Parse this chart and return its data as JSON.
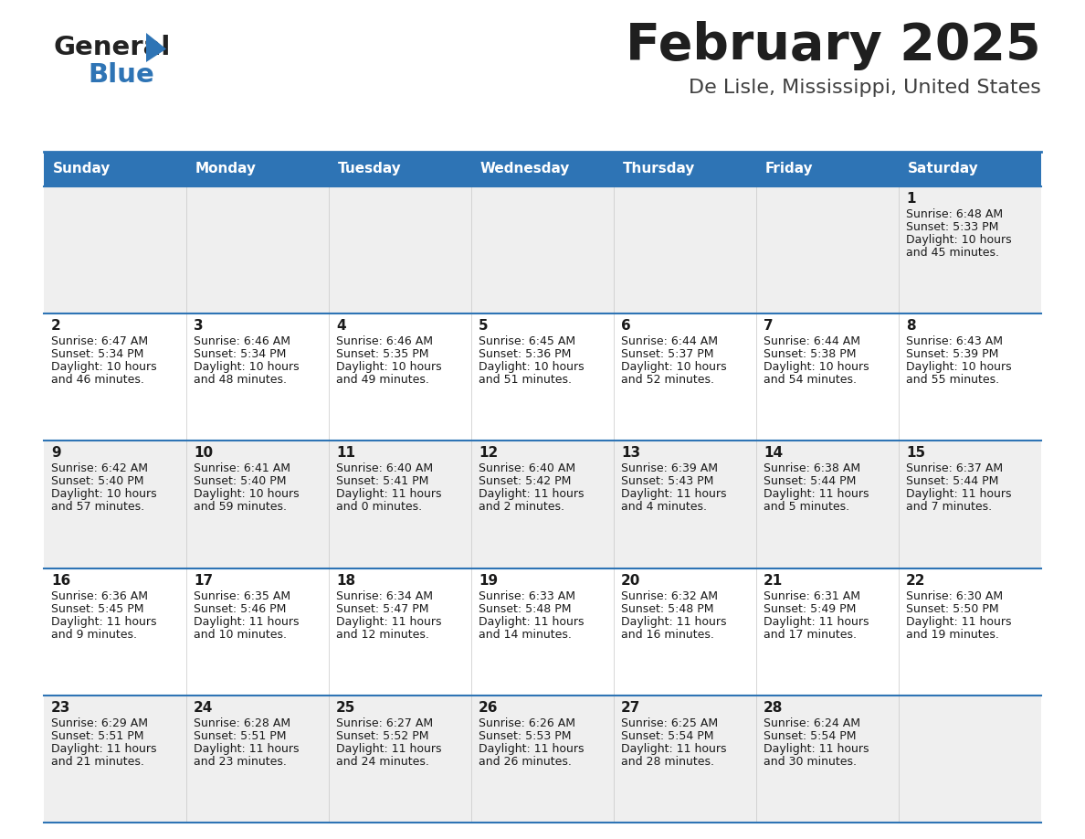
{
  "title": "February 2025",
  "subtitle": "De Lisle, Mississippi, United States",
  "header_color": "#2E74B5",
  "header_text_color": "#FFFFFF",
  "day_names": [
    "Sunday",
    "Monday",
    "Tuesday",
    "Wednesday",
    "Thursday",
    "Friday",
    "Saturday"
  ],
  "title_color": "#1F1F1F",
  "subtitle_color": "#404040",
  "line_color": "#2E74B5",
  "row_colors": [
    "#EFEFEF",
    "#FFFFFF",
    "#EFEFEF",
    "#FFFFFF",
    "#EFEFEF"
  ],
  "days": [
    {
      "day": 1,
      "col": 6,
      "row": 0,
      "sunrise": "6:48 AM",
      "sunset": "5:33 PM",
      "daylight_hours": 10,
      "daylight_minutes": 45
    },
    {
      "day": 2,
      "col": 0,
      "row": 1,
      "sunrise": "6:47 AM",
      "sunset": "5:34 PM",
      "daylight_hours": 10,
      "daylight_minutes": 46
    },
    {
      "day": 3,
      "col": 1,
      "row": 1,
      "sunrise": "6:46 AM",
      "sunset": "5:34 PM",
      "daylight_hours": 10,
      "daylight_minutes": 48
    },
    {
      "day": 4,
      "col": 2,
      "row": 1,
      "sunrise": "6:46 AM",
      "sunset": "5:35 PM",
      "daylight_hours": 10,
      "daylight_minutes": 49
    },
    {
      "day": 5,
      "col": 3,
      "row": 1,
      "sunrise": "6:45 AM",
      "sunset": "5:36 PM",
      "daylight_hours": 10,
      "daylight_minutes": 51
    },
    {
      "day": 6,
      "col": 4,
      "row": 1,
      "sunrise": "6:44 AM",
      "sunset": "5:37 PM",
      "daylight_hours": 10,
      "daylight_minutes": 52
    },
    {
      "day": 7,
      "col": 5,
      "row": 1,
      "sunrise": "6:44 AM",
      "sunset": "5:38 PM",
      "daylight_hours": 10,
      "daylight_minutes": 54
    },
    {
      "day": 8,
      "col": 6,
      "row": 1,
      "sunrise": "6:43 AM",
      "sunset": "5:39 PM",
      "daylight_hours": 10,
      "daylight_minutes": 55
    },
    {
      "day": 9,
      "col": 0,
      "row": 2,
      "sunrise": "6:42 AM",
      "sunset": "5:40 PM",
      "daylight_hours": 10,
      "daylight_minutes": 57
    },
    {
      "day": 10,
      "col": 1,
      "row": 2,
      "sunrise": "6:41 AM",
      "sunset": "5:40 PM",
      "daylight_hours": 10,
      "daylight_minutes": 59
    },
    {
      "day": 11,
      "col": 2,
      "row": 2,
      "sunrise": "6:40 AM",
      "sunset": "5:41 PM",
      "daylight_hours": 11,
      "daylight_minutes": 0
    },
    {
      "day": 12,
      "col": 3,
      "row": 2,
      "sunrise": "6:40 AM",
      "sunset": "5:42 PM",
      "daylight_hours": 11,
      "daylight_minutes": 2
    },
    {
      "day": 13,
      "col": 4,
      "row": 2,
      "sunrise": "6:39 AM",
      "sunset": "5:43 PM",
      "daylight_hours": 11,
      "daylight_minutes": 4
    },
    {
      "day": 14,
      "col": 5,
      "row": 2,
      "sunrise": "6:38 AM",
      "sunset": "5:44 PM",
      "daylight_hours": 11,
      "daylight_minutes": 5
    },
    {
      "day": 15,
      "col": 6,
      "row": 2,
      "sunrise": "6:37 AM",
      "sunset": "5:44 PM",
      "daylight_hours": 11,
      "daylight_minutes": 7
    },
    {
      "day": 16,
      "col": 0,
      "row": 3,
      "sunrise": "6:36 AM",
      "sunset": "5:45 PM",
      "daylight_hours": 11,
      "daylight_minutes": 9
    },
    {
      "day": 17,
      "col": 1,
      "row": 3,
      "sunrise": "6:35 AM",
      "sunset": "5:46 PM",
      "daylight_hours": 11,
      "daylight_minutes": 10
    },
    {
      "day": 18,
      "col": 2,
      "row": 3,
      "sunrise": "6:34 AM",
      "sunset": "5:47 PM",
      "daylight_hours": 11,
      "daylight_minutes": 12
    },
    {
      "day": 19,
      "col": 3,
      "row": 3,
      "sunrise": "6:33 AM",
      "sunset": "5:48 PM",
      "daylight_hours": 11,
      "daylight_minutes": 14
    },
    {
      "day": 20,
      "col": 4,
      "row": 3,
      "sunrise": "6:32 AM",
      "sunset": "5:48 PM",
      "daylight_hours": 11,
      "daylight_minutes": 16
    },
    {
      "day": 21,
      "col": 5,
      "row": 3,
      "sunrise": "6:31 AM",
      "sunset": "5:49 PM",
      "daylight_hours": 11,
      "daylight_minutes": 17
    },
    {
      "day": 22,
      "col": 6,
      "row": 3,
      "sunrise": "6:30 AM",
      "sunset": "5:50 PM",
      "daylight_hours": 11,
      "daylight_minutes": 19
    },
    {
      "day": 23,
      "col": 0,
      "row": 4,
      "sunrise": "6:29 AM",
      "sunset": "5:51 PM",
      "daylight_hours": 11,
      "daylight_minutes": 21
    },
    {
      "day": 24,
      "col": 1,
      "row": 4,
      "sunrise": "6:28 AM",
      "sunset": "5:51 PM",
      "daylight_hours": 11,
      "daylight_minutes": 23
    },
    {
      "day": 25,
      "col": 2,
      "row": 4,
      "sunrise": "6:27 AM",
      "sunset": "5:52 PM",
      "daylight_hours": 11,
      "daylight_minutes": 24
    },
    {
      "day": 26,
      "col": 3,
      "row": 4,
      "sunrise": "6:26 AM",
      "sunset": "5:53 PM",
      "daylight_hours": 11,
      "daylight_minutes": 26
    },
    {
      "day": 27,
      "col": 4,
      "row": 4,
      "sunrise": "6:25 AM",
      "sunset": "5:54 PM",
      "daylight_hours": 11,
      "daylight_minutes": 28
    },
    {
      "day": 28,
      "col": 5,
      "row": 4,
      "sunrise": "6:24 AM",
      "sunset": "5:54 PM",
      "daylight_hours": 11,
      "daylight_minutes": 30
    }
  ]
}
